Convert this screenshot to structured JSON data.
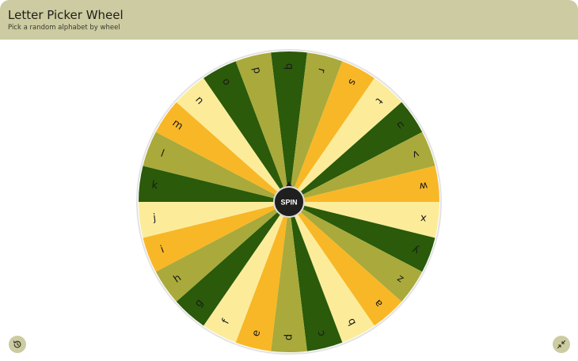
{
  "header": {
    "title": "Letter Picker Wheel",
    "subtitle": "Pick a random alphabet by wheel"
  },
  "wheel": {
    "letters": [
      "q",
      "r",
      "s",
      "t",
      "u",
      "v",
      "w",
      "x",
      "y",
      "z",
      "a",
      "b",
      "c",
      "d",
      "e",
      "f",
      "g",
      "h",
      "i",
      "j",
      "k",
      "l",
      "m",
      "n",
      "o",
      "p"
    ],
    "colors": [
      "#2a5a0a",
      "#a9aa3b",
      "#f8b726",
      "#fcec9a"
    ],
    "border_color": "#e3e3e3",
    "letter_color": "#1b1b1b",
    "spin_label": "SPIN",
    "hub_color": "#1f1f1f"
  },
  "controls": {
    "history_icon": "history-icon",
    "collapse_icon": "collapse-icon"
  }
}
